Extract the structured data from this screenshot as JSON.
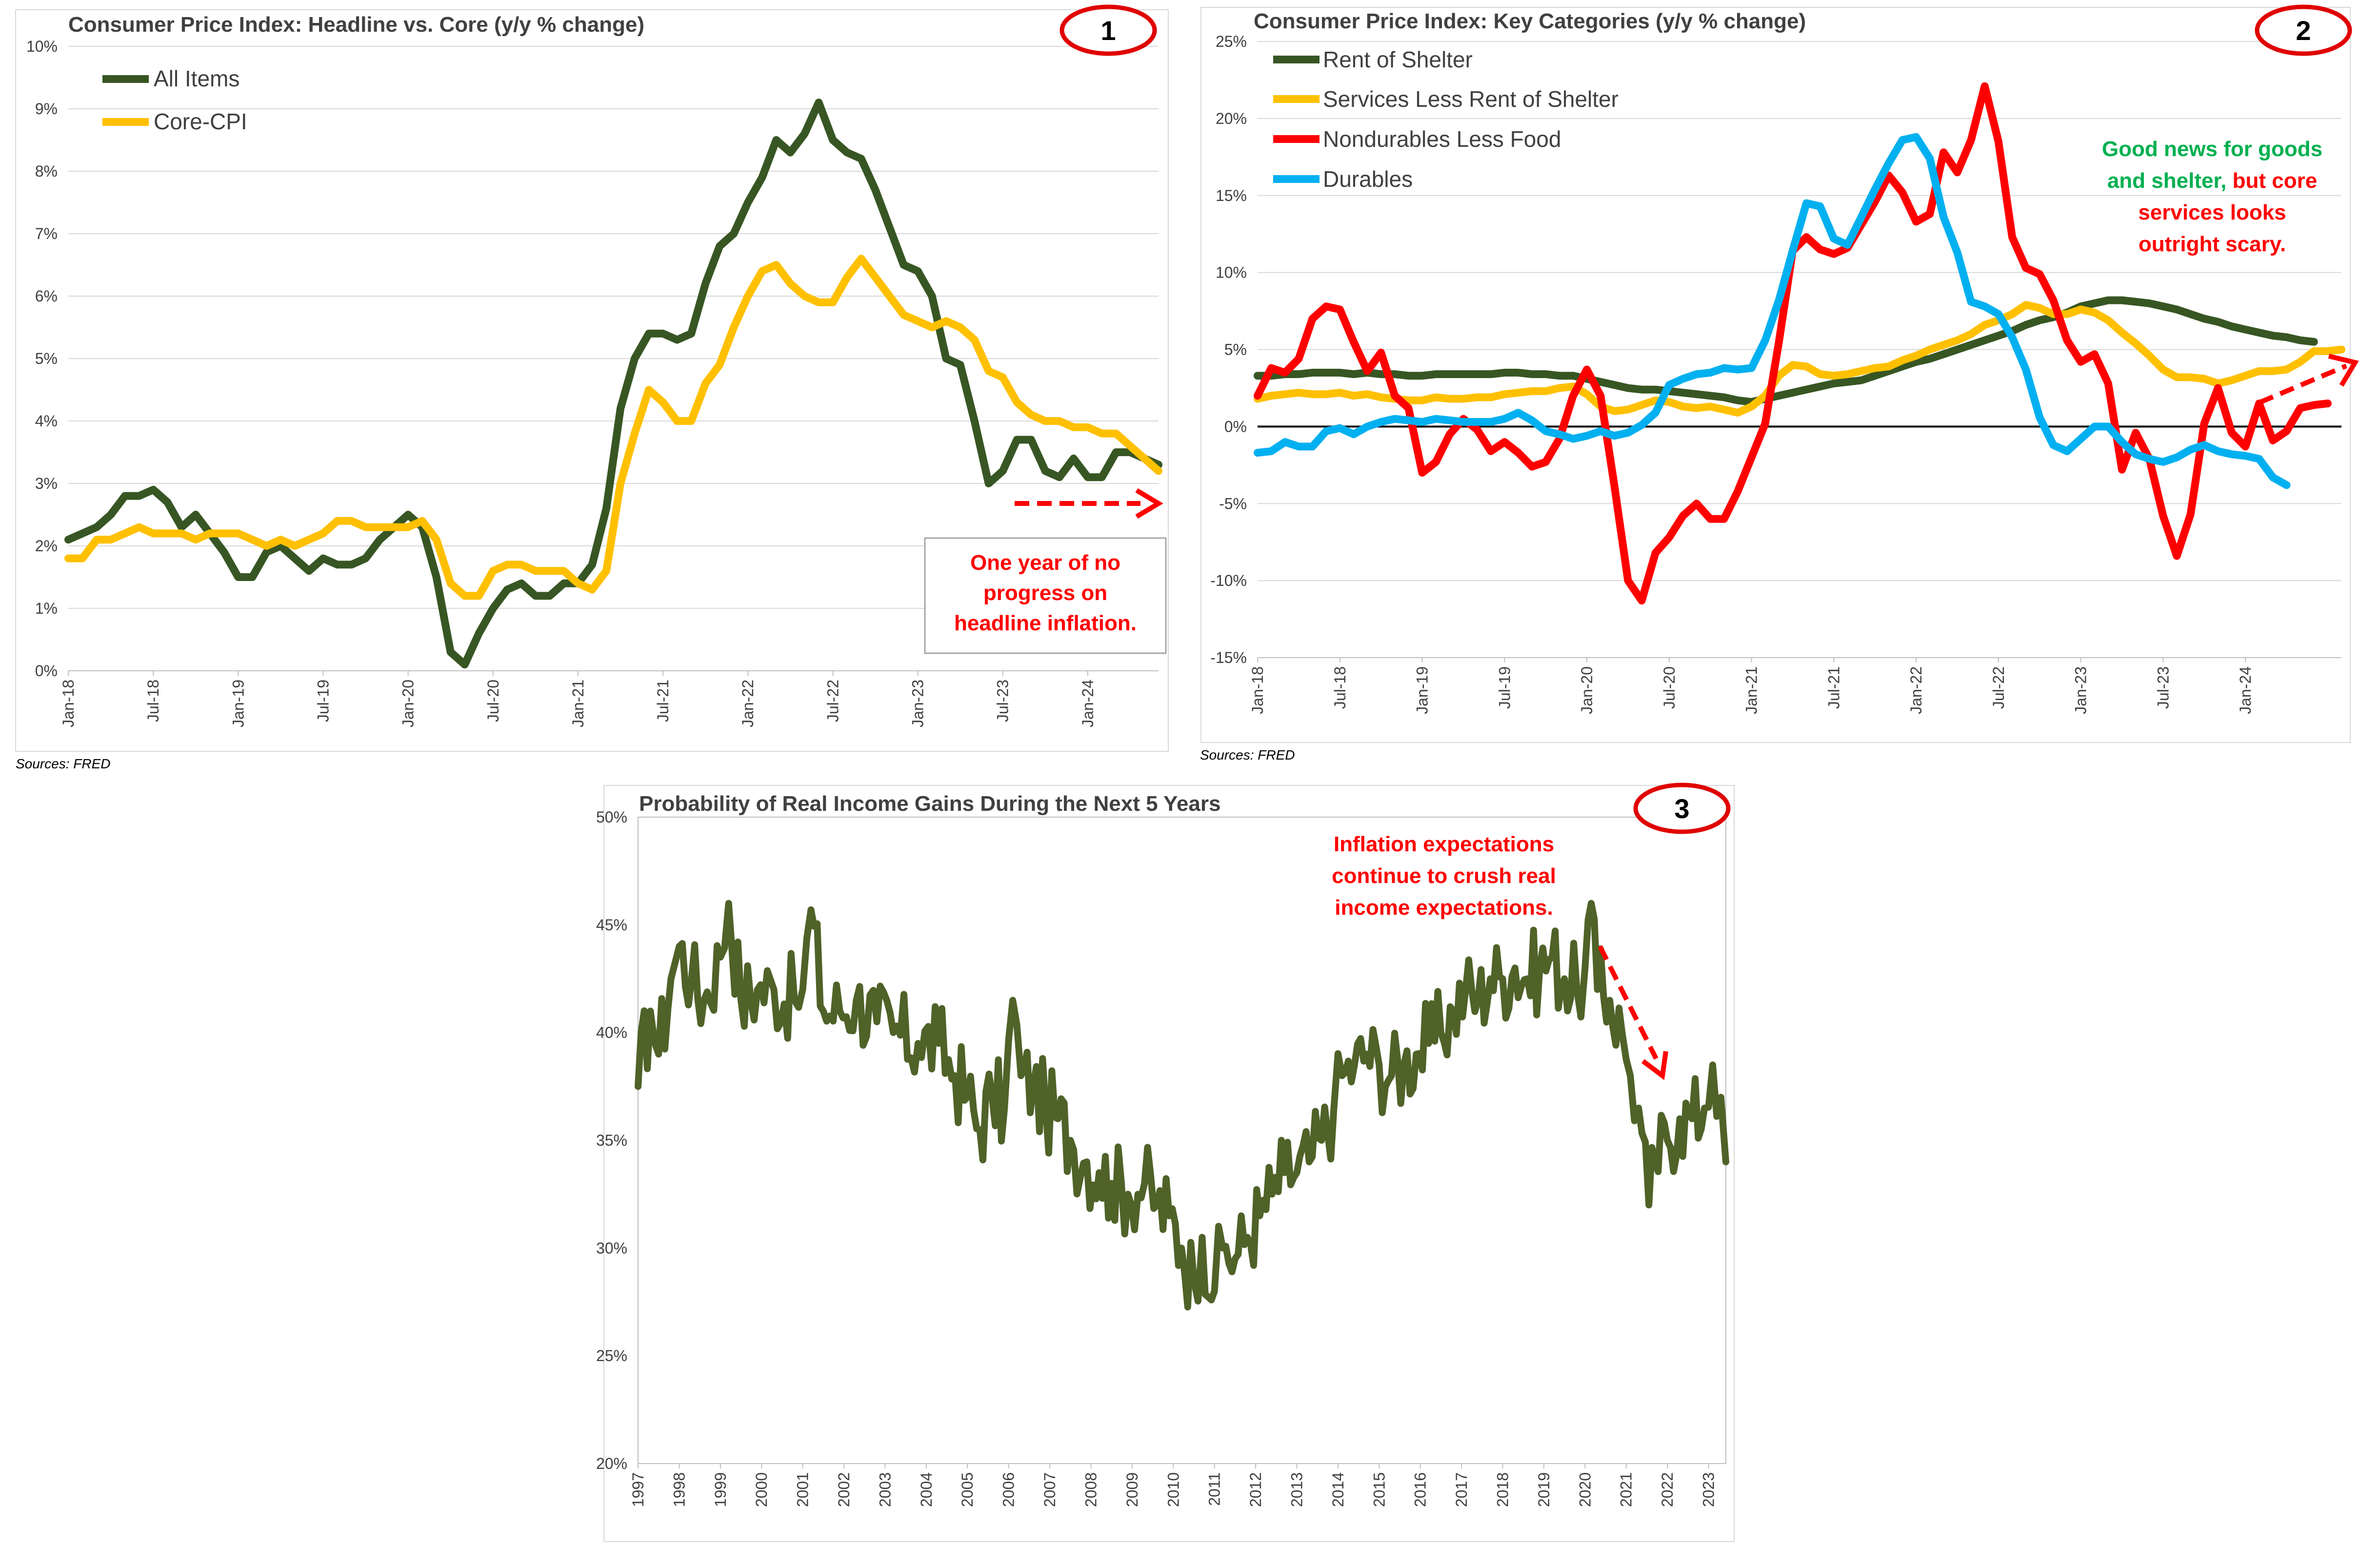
{
  "colors": {
    "green": "#375623",
    "yellow": "#FFC000",
    "red": "#FF0000",
    "blue": "#00B0F0",
    "green_good": "#00B050",
    "dark_olive": "#4F6228"
  },
  "chart_data": [
    {
      "id": "c1",
      "badge": "1",
      "type": "line",
      "title": "Consumer Price Index: Headline vs. Core (y/y % change)",
      "source": "Sources: FRED",
      "ylim": [
        0,
        10
      ],
      "yticks": [
        "0%",
        "1%",
        "2%",
        "3%",
        "4%",
        "5%",
        "6%",
        "7%",
        "8%",
        "9%",
        "10%"
      ],
      "xticks": [
        "Jan-18",
        "Jul-18",
        "Jan-19",
        "Jul-19",
        "Jan-20",
        "Jul-20",
        "Jan-21",
        "Jul-21",
        "Jan-22",
        "Jul-22",
        "Jan-23",
        "Jul-23",
        "Jan-24"
      ],
      "grid": true,
      "legend": "top-left",
      "note": "One year of no progress on headline inflation.",
      "note_lines": [
        "One year of no",
        "progress on",
        "headline inflation."
      ],
      "series": [
        {
          "name": "All Items",
          "color": "#375623",
          "values": [
            2.1,
            2.2,
            2.3,
            2.5,
            2.8,
            2.8,
            2.9,
            2.7,
            2.3,
            2.5,
            2.2,
            1.9,
            1.5,
            1.5,
            1.9,
            2.0,
            1.8,
            1.6,
            1.8,
            1.7,
            1.7,
            1.8,
            2.1,
            2.3,
            2.5,
            2.3,
            1.5,
            0.3,
            0.1,
            0.6,
            1.0,
            1.3,
            1.4,
            1.2,
            1.2,
            1.4,
            1.4,
            1.7,
            2.6,
            4.2,
            5.0,
            5.4,
            5.4,
            5.3,
            5.4,
            6.2,
            6.8,
            7.0,
            7.5,
            7.9,
            8.5,
            8.3,
            8.6,
            9.1,
            8.5,
            8.3,
            8.2,
            7.7,
            7.1,
            6.5,
            6.4,
            6.0,
            5.0,
            4.9,
            4.0,
            3.0,
            3.2,
            3.7,
            3.7,
            3.2,
            3.1,
            3.4,
            3.1,
            3.1,
            3.5,
            3.5,
            3.4,
            3.3
          ]
        },
        {
          "name": "Core-CPI",
          "color": "#FFC000",
          "values": [
            1.8,
            1.8,
            2.1,
            2.1,
            2.2,
            2.3,
            2.2,
            2.2,
            2.2,
            2.1,
            2.2,
            2.2,
            2.2,
            2.1,
            2.0,
            2.1,
            2.0,
            2.1,
            2.2,
            2.4,
            2.4,
            2.3,
            2.3,
            2.3,
            2.3,
            2.4,
            2.1,
            1.4,
            1.2,
            1.2,
            1.6,
            1.7,
            1.7,
            1.6,
            1.6,
            1.6,
            1.4,
            1.3,
            1.6,
            3.0,
            3.8,
            4.5,
            4.3,
            4.0,
            4.0,
            4.6,
            4.9,
            5.5,
            6.0,
            6.4,
            6.5,
            6.2,
            6.0,
            5.9,
            5.9,
            6.3,
            6.6,
            6.3,
            6.0,
            5.7,
            5.6,
            5.5,
            5.6,
            5.5,
            5.3,
            4.8,
            4.7,
            4.3,
            4.1,
            4.0,
            4.0,
            3.9,
            3.9,
            3.8,
            3.8,
            3.6,
            3.4,
            3.2
          ]
        }
      ]
    },
    {
      "id": "c2",
      "badge": "2",
      "type": "line",
      "title": "Consumer Price Index: Key Categories (y/y % change)",
      "source": "Sources: FRED",
      "ylim": [
        -15,
        25
      ],
      "yticks": [
        "-15%",
        "-10%",
        "-5%",
        "0%",
        "5%",
        "10%",
        "15%",
        "20%",
        "25%"
      ],
      "xticks": [
        "Jan-18",
        "Jul-18",
        "Jan-19",
        "Jul-19",
        "Jan-20",
        "Jul-20",
        "Jan-21",
        "Jul-21",
        "Jan-22",
        "Jul-22",
        "Jan-23",
        "Jul-23",
        "Jan-24"
      ],
      "grid": true,
      "legend": "top-left",
      "note_parts": [
        {
          "text": "Good news for goods",
          "color": "#00B050"
        },
        {
          "text": "and shelter,",
          "color": "#00B050"
        },
        {
          "text": " but core",
          "color": "#FF0000"
        },
        {
          "text": "services looks",
          "color": "#FF0000"
        },
        {
          "text": "outright scary.",
          "color": "#FF0000"
        }
      ],
      "series": [
        {
          "name": "Rent of Shelter",
          "color": "#375623",
          "values": [
            3.3,
            3.3,
            3.4,
            3.4,
            3.5,
            3.5,
            3.5,
            3.4,
            3.5,
            3.4,
            3.4,
            3.3,
            3.3,
            3.4,
            3.4,
            3.4,
            3.4,
            3.4,
            3.5,
            3.5,
            3.4,
            3.4,
            3.3,
            3.3,
            3.1,
            2.9,
            2.7,
            2.5,
            2.4,
            2.4,
            2.3,
            2.2,
            2.1,
            2.0,
            1.9,
            1.7,
            1.6,
            1.8,
            2.0,
            2.2,
            2.4,
            2.6,
            2.8,
            2.9,
            3.0,
            3.3,
            3.6,
            3.9,
            4.2,
            4.4,
            4.7,
            5.0,
            5.3,
            5.6,
            5.9,
            6.2,
            6.6,
            6.9,
            7.1,
            7.4,
            7.8,
            8.0,
            8.2,
            8.2,
            8.1,
            8.0,
            7.8,
            7.6,
            7.3,
            7.0,
            6.8,
            6.5,
            6.3,
            6.1,
            5.9,
            5.8,
            5.6,
            5.5
          ]
        },
        {
          "name": "Services Less Rent of Shelter",
          "color": "#FFC000",
          "values": [
            1.8,
            2.0,
            2.1,
            2.2,
            2.1,
            2.1,
            2.2,
            2.0,
            2.1,
            1.9,
            1.8,
            1.7,
            1.7,
            1.9,
            1.8,
            1.8,
            1.9,
            1.9,
            2.1,
            2.2,
            2.3,
            2.3,
            2.5,
            2.6,
            2.1,
            1.3,
            1.0,
            1.1,
            1.4,
            1.7,
            1.6,
            1.3,
            1.2,
            1.3,
            1.1,
            0.9,
            1.3,
            2.0,
            3.3,
            4.0,
            3.9,
            3.4,
            3.3,
            3.4,
            3.6,
            3.8,
            3.9,
            4.3,
            4.6,
            5.0,
            5.3,
            5.6,
            6.0,
            6.6,
            6.9,
            7.3,
            7.9,
            7.7,
            7.3,
            7.3,
            7.6,
            7.4,
            6.9,
            6.1,
            5.4,
            4.6,
            3.7,
            3.2,
            3.2,
            3.1,
            2.8,
            3.0,
            3.3,
            3.6,
            3.6,
            3.7,
            4.2,
            4.9,
            4.9,
            5.0
          ]
        },
        {
          "name": "Nondurables Less Food",
          "color": "#FF0000",
          "values": [
            2.0,
            3.8,
            3.5,
            4.4,
            7.0,
            7.8,
            7.6,
            5.5,
            3.6,
            4.8,
            2.0,
            1.2,
            -3.0,
            -2.3,
            -0.5,
            0.5,
            -0.2,
            -1.6,
            -1.0,
            -1.7,
            -2.6,
            -2.3,
            -0.8,
            2.0,
            3.7,
            2.0,
            -3.8,
            -10.0,
            -11.3,
            -8.2,
            -7.2,
            -5.8,
            -5.0,
            -6.0,
            -6.0,
            -4.2,
            -2.0,
            0.2,
            5.5,
            11.4,
            12.3,
            11.5,
            11.2,
            11.6,
            13.1,
            14.6,
            16.3,
            15.2,
            13.3,
            13.8,
            17.8,
            16.5,
            18.6,
            22.1,
            18.5,
            12.3,
            10.3,
            9.9,
            8.2,
            5.6,
            4.2,
            4.7,
            2.8,
            -2.8,
            -0.4,
            -2.1,
            -5.8,
            -8.4,
            -5.7,
            0.2,
            2.5,
            -0.4,
            -1.3,
            1.5,
            -0.9,
            -0.3,
            1.2,
            1.4,
            1.5
          ]
        },
        {
          "name": "Durables",
          "color": "#00B0F0",
          "values": [
            -1.7,
            -1.6,
            -1.0,
            -1.3,
            -1.3,
            -0.3,
            -0.1,
            -0.5,
            0.0,
            0.3,
            0.5,
            0.4,
            0.3,
            0.5,
            0.4,
            0.3,
            0.3,
            0.3,
            0.5,
            0.9,
            0.4,
            -0.3,
            -0.5,
            -0.8,
            -0.6,
            -0.3,
            -0.6,
            -0.4,
            0.1,
            0.9,
            2.7,
            3.1,
            3.4,
            3.5,
            3.8,
            3.7,
            3.8,
            5.6,
            8.2,
            11.4,
            14.5,
            14.3,
            12.2,
            11.8,
            13.6,
            15.4,
            17.1,
            18.6,
            18.8,
            17.4,
            13.6,
            11.3,
            8.1,
            7.8,
            7.3,
            5.8,
            3.7,
            0.6,
            -1.2,
            -1.6,
            -0.8,
            0.0,
            0.0,
            -1.0,
            -1.8,
            -2.1,
            -2.3,
            -2.0,
            -1.5,
            -1.2,
            -1.6,
            -1.8,
            -1.9,
            -2.1,
            -3.3,
            -3.8
          ]
        }
      ]
    },
    {
      "id": "c3",
      "badge": "3",
      "type": "line",
      "title": "Probability of Real Income Gains During the Next 5 Years",
      "ylim": [
        20,
        50
      ],
      "yticks": [
        "20%",
        "25%",
        "30%",
        "35%",
        "40%",
        "45%",
        "50%"
      ],
      "xticks": [
        "1997",
        "1998",
        "1999",
        "2000",
        "2001",
        "2002",
        "2003",
        "2004",
        "2005",
        "2006",
        "2007",
        "2008",
        "2009",
        "2010",
        "2011",
        "2012",
        "2013",
        "2014",
        "2015",
        "2016",
        "2017",
        "2018",
        "2019",
        "2020",
        "2021",
        "2022",
        "2023"
      ],
      "grid": false,
      "note": "Inflation expectations continue to crush real income expectations.",
      "note_lines": [
        "Inflation expectations",
        "continue to crush real",
        "income expectations."
      ],
      "series": [
        {
          "name": "Probability of Real Income Gains",
          "color": "#4F6228",
          "x_start": 1997.0,
          "x_end": 2023.42,
          "keypoints": [
            [
              1997.0,
              37.5
            ],
            [
              1997.3,
              41.0
            ],
            [
              1997.5,
              39.0
            ],
            [
              1997.8,
              42.5
            ],
            [
              1998.0,
              44.0
            ],
            [
              1998.3,
              42.5
            ],
            [
              1998.6,
              41.5
            ],
            [
              1999.0,
              43.5
            ],
            [
              1999.2,
              46.0
            ],
            [
              1999.5,
              41.5
            ],
            [
              1999.9,
              42.0
            ],
            [
              2000.3,
              42.0
            ],
            [
              2000.8,
              41.5
            ],
            [
              2001.0,
              42.0
            ],
            [
              2001.2,
              45.7
            ],
            [
              2001.5,
              41.0
            ],
            [
              2001.9,
              41.0
            ],
            [
              2002.3,
              41.5
            ],
            [
              2002.8,
              40.5
            ],
            [
              2003.2,
              40.0
            ],
            [
              2003.8,
              39.5
            ],
            [
              2004.3,
              39.5
            ],
            [
              2004.7,
              38.0
            ],
            [
              2005.0,
              37.0
            ],
            [
              2005.3,
              35.5
            ],
            [
              2005.6,
              37.0
            ],
            [
              2005.9,
              36.5
            ],
            [
              2006.1,
              41.5
            ],
            [
              2006.3,
              38.0
            ],
            [
              2006.6,
              37.5
            ],
            [
              2006.9,
              36.5
            ],
            [
              2007.2,
              36.0
            ],
            [
              2007.5,
              35.0
            ],
            [
              2007.9,
              34.0
            ],
            [
              2008.2,
              33.5
            ],
            [
              2008.5,
              33.0
            ],
            [
              2008.9,
              32.5
            ],
            [
              2009.3,
              33.0
            ],
            [
              2009.6,
              32.0
            ],
            [
              2009.9,
              31.5
            ],
            [
              2010.2,
              30.0
            ],
            [
              2010.5,
              28.5
            ],
            [
              2010.7,
              30.5
            ],
            [
              2011.0,
              28.0
            ],
            [
              2011.2,
              30.0
            ],
            [
              2011.5,
              29.5
            ],
            [
              2011.8,
              30.5
            ],
            [
              2012.1,
              31.5
            ],
            [
              2012.4,
              32.5
            ],
            [
              2012.7,
              33.5
            ],
            [
              2013.0,
              33.5
            ],
            [
              2013.3,
              34.0
            ],
            [
              2013.6,
              35.0
            ],
            [
              2013.9,
              36.5
            ],
            [
              2014.1,
              38.0
            ],
            [
              2014.4,
              38.5
            ],
            [
              2014.7,
              39.0
            ],
            [
              2015.0,
              38.5
            ],
            [
              2015.3,
              38.0
            ],
            [
              2015.6,
              38.5
            ],
            [
              2015.9,
              39.0
            ],
            [
              2016.2,
              39.5
            ],
            [
              2016.5,
              40.0
            ],
            [
              2016.8,
              41.0
            ],
            [
              2017.1,
              42.0
            ],
            [
              2017.4,
              41.5
            ],
            [
              2017.7,
              42.5
            ],
            [
              2018.0,
              42.5
            ],
            [
              2018.3,
              43.0
            ],
            [
              2018.6,
              42.5
            ],
            [
              2018.9,
              43.0
            ],
            [
              2019.2,
              43.5
            ],
            [
              2019.5,
              42.5
            ],
            [
              2019.8,
              42.0
            ],
            [
              2020.0,
              43.0
            ],
            [
              2020.15,
              46.0
            ],
            [
              2020.3,
              42.0
            ],
            [
              2020.6,
              41.5
            ],
            [
              2020.9,
              40.0
            ],
            [
              2021.1,
              38.0
            ],
            [
              2021.3,
              36.5
            ],
            [
              2021.55,
              32.0
            ],
            [
              2021.7,
              34.0
            ],
            [
              2022.0,
              35.0
            ],
            [
              2022.3,
              36.0
            ],
            [
              2022.6,
              36.0
            ],
            [
              2022.9,
              36.5
            ],
            [
              2023.1,
              38.5
            ],
            [
              2023.3,
              37.0
            ],
            [
              2023.42,
              34.0
            ]
          ]
        }
      ]
    }
  ]
}
